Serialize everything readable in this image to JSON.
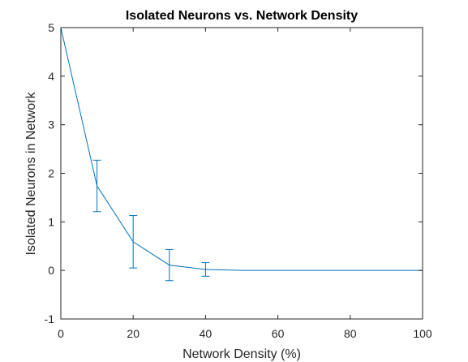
{
  "chart_data": {
    "type": "line",
    "title": "Isolated Neurons vs. Network Density",
    "xlabel": "Network Density (%)",
    "ylabel": "Isolated Neurons in Network",
    "xlim": [
      0,
      100
    ],
    "ylim": [
      -1,
      5
    ],
    "xticks": [
      0,
      20,
      40,
      60,
      80,
      100
    ],
    "yticks": [
      -1,
      0,
      1,
      2,
      3,
      4,
      5
    ],
    "xtick_labels": [
      "0",
      "20",
      "40",
      "60",
      "80",
      "100"
    ],
    "ytick_labels": [
      "-1",
      "0",
      "1",
      "2",
      "3",
      "4",
      "5"
    ],
    "grid": false,
    "box": true,
    "series": [
      {
        "color": "#0072BD",
        "x": [
          0,
          10,
          20,
          30,
          40,
          50,
          60,
          70,
          80,
          90,
          100
        ],
        "y": [
          5,
          1.74,
          0.59,
          0.11,
          0.02,
          0,
          0,
          0,
          0,
          0,
          0
        ],
        "error": [
          0,
          0.53,
          0.54,
          0.32,
          0.14,
          0,
          0,
          0,
          0,
          0,
          0
        ]
      }
    ]
  }
}
